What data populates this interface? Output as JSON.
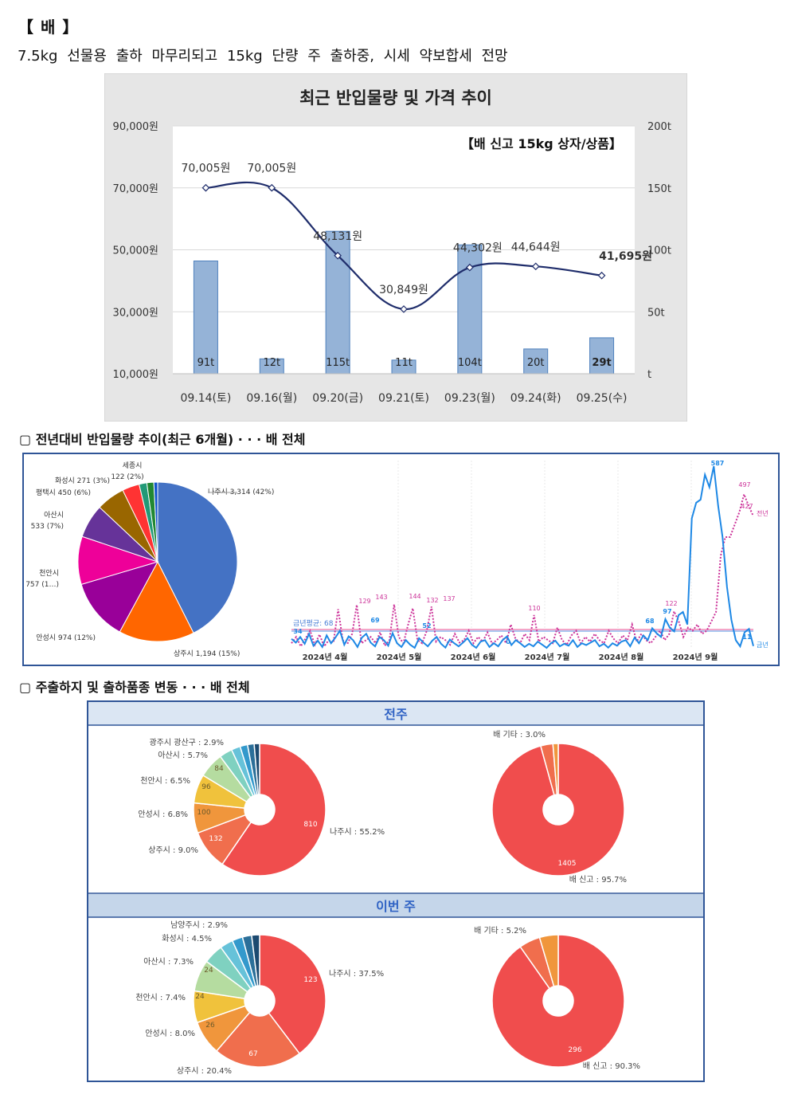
{
  "heading": "【 배 】",
  "summary": "7.5kg 선물용 출하 마무리되고 15kg 단량 주 출하중, 시세 약보합세 전망",
  "chart_data": [
    {
      "type": "bar+line",
      "title": "최근 반입물량 및 가격 추이",
      "subtitle": "【배 신고 15kg 상자/상품】",
      "categories": [
        "09.14(토)",
        "09.16(월)",
        "09.20(금)",
        "09.21(토)",
        "09.23(월)",
        "09.24(화)",
        "09.25(수)"
      ],
      "bar_series": {
        "values": [
          91,
          12,
          115,
          11,
          104,
          20,
          29
        ],
        "labels": [
          "91t",
          "12t",
          "115t",
          "11t",
          "104t",
          "20t",
          "29t"
        ]
      },
      "line_series": {
        "values": [
          70005,
          70005,
          48131,
          30849,
          44302,
          44644,
          41695
        ],
        "labels": [
          "70,005원",
          "70,005원",
          "48,131원",
          "30,849원",
          "44,302원",
          "44,644원",
          "41,695원"
        ]
      },
      "y_left": {
        "ticks": [
          "90,000원",
          "70,000원",
          "50,000원",
          "30,000원",
          "10,000원"
        ],
        "range": [
          10000,
          90000
        ]
      },
      "y_right": {
        "ticks": [
          "200t",
          "150t",
          "100t",
          "50t",
          "t"
        ],
        "range": [
          0,
          200
        ]
      },
      "grid": true,
      "colors": {
        "bar": "#95b3d7",
        "bar_border": "#4f81bd",
        "line": "#1f2d6b",
        "bg": "#e6e6e6"
      }
    },
    {
      "type": "pie",
      "section_title": "▢ 전년대비 반입물량 추이(최근 6개월) · · · 배 전체",
      "slices": [
        {
          "label": "나주시 3,314 (42%)",
          "value": 3314,
          "color": "#4472c4"
        },
        {
          "label": "상주시 1,194 (15%)",
          "value": 1194,
          "color": "#ff6600"
        },
        {
          "label": "안성시 974 (12%)",
          "value": 974,
          "color": "#990099"
        },
        {
          "label": "천안시 757 (1…)",
          "value": 757,
          "color": "#ee0099"
        },
        {
          "label": "아산시 533 (7%)",
          "value": 533,
          "color": "#663399"
        },
        {
          "label": "평택시 450 (6%)",
          "value": 450,
          "color": "#996600"
        },
        {
          "label": "화성시 271 (3%)",
          "value": 271,
          "color": "#ff3333"
        },
        {
          "label": "세종시 122 (2%)",
          "value": 122,
          "color": "#229977"
        },
        {
          "label": "",
          "value": 110,
          "color": "#228833"
        },
        {
          "label": "",
          "value": 60,
          "color": "#1155cc"
        }
      ]
    },
    {
      "type": "line",
      "x_ticks": [
        "2024년 4월",
        "2024년 5월",
        "2024년 6월",
        "2024년 7월",
        "2024년 8월",
        "2024년 9월"
      ],
      "series": [
        {
          "name": "금년",
          "color": "#1e88e5",
          "values": [
            34,
            22,
            40,
            18,
            50,
            12,
            28,
            8,
            45,
            20,
            38,
            60,
            15,
            42,
            30,
            8,
            38,
            50,
            22,
            10,
            40,
            30,
            12,
            52,
            20,
            8,
            30,
            15,
            5,
            36,
            22,
            10,
            28,
            40,
            18,
            6,
            32,
            20,
            10,
            22,
            36,
            15,
            5,
            25,
            30,
            8,
            20,
            10,
            30,
            42,
            14,
            30,
            20,
            8,
            18,
            10,
            25,
            15,
            5,
            20,
            28,
            10,
            18,
            12,
            30,
            8,
            20,
            14,
            22,
            30,
            10,
            18,
            6,
            20,
            12,
            25,
            30,
            10,
            38,
            20,
            45,
            30,
            68,
            52,
            40,
            97,
            70,
            58,
            110,
            120,
            80,
            420,
            470,
            480,
            560,
            520,
            587,
            460,
            360,
            200,
            95,
            30,
            10,
            55,
            66,
            11
          ]
        },
        {
          "name": "전년",
          "color": "#cc3399",
          "values": [
            20,
            40,
            10,
            35,
            60,
            15,
            48,
            10,
            30,
            22,
            129,
            30,
            18,
            50,
            143,
            20,
            30,
            40,
            20,
            55,
            12,
            30,
            144,
            40,
            20,
            80,
            132,
            30,
            20,
            60,
            137,
            25,
            40,
            30,
            15,
            50,
            22,
            30,
            60,
            20,
            40,
            25,
            55,
            18,
            30,
            45,
            20,
            80,
            35,
            20,
            50,
            30,
            110,
            25,
            40,
            30,
            20,
            70,
            30,
            15,
            45,
            60,
            20,
            40,
            25,
            50,
            30,
            20,
            60,
            35,
            20,
            45,
            30,
            80,
            25,
            50,
            30,
            20,
            40,
            60,
            30,
            50,
            122,
            90,
            40,
            70,
            60,
            80,
            50,
            60,
            90,
            120,
            300,
            360,
            360,
            400,
            440,
            497,
            460,
            427
          ]
        }
      ],
      "point_labels_curr": [
        "34",
        "69",
        "52",
        "0",
        "68",
        "97",
        "587",
        "11"
      ],
      "point_labels_prev": [
        "129",
        "143",
        "144",
        "132",
        "137",
        "110",
        "122",
        "497",
        "427"
      ],
      "average_label": "금년평균: 68",
      "legend_prev": "전년",
      "legend_curr": "금년"
    },
    {
      "type": "pie",
      "section_title": "▢ 주출하지 및 출하품종 변동 · · · 배 전체",
      "panel_label": "전주",
      "chart": "region",
      "slices": [
        {
          "value": 810,
          "pct_label": "나주시 : 55.2%",
          "color": "#f04d4d"
        },
        {
          "value": 132,
          "pct_label": "상주시 : 9.0%",
          "color": "#f06e4d"
        },
        {
          "value": 100,
          "pct_label": "안성시 : 6.8%",
          "color": "#f0963c"
        },
        {
          "value": 96,
          "pct_label": "천안시 : 6.5%",
          "color": "#f0c23c"
        },
        {
          "value": 84,
          "pct_label": "아산시 : 5.7%",
          "color": "#b5dca0"
        },
        {
          "value": 43,
          "pct_label": "광주시 광산구 : 2.9%",
          "color": "#7fd1c0"
        },
        {
          "value": 30,
          "pct_label": "",
          "color": "#66c2d9"
        },
        {
          "value": 25,
          "pct_label": "",
          "color": "#3399cc"
        },
        {
          "value": 22,
          "pct_label": "",
          "color": "#2b6f99"
        },
        {
          "value": 18,
          "pct_label": "",
          "color": "#1c4a70"
        }
      ]
    },
    {
      "type": "pie",
      "panel_label": "전주",
      "chart": "variety",
      "slices": [
        {
          "value": 1405,
          "pct_label": "배 신고 : 95.7%",
          "color": "#f04d4d"
        },
        {
          "value": 44,
          "pct_label": "배 기타 : 3.0%",
          "color": "#f06e4d"
        },
        {
          "value": 19,
          "pct_label": "",
          "color": "#f0963c"
        }
      ]
    },
    {
      "type": "pie",
      "panel_label": "이번 주",
      "chart": "region",
      "slices": [
        {
          "value": 123,
          "pct_label": "나주시 : 37.5%",
          "color": "#f04d4d"
        },
        {
          "value": 67,
          "pct_label": "상주시 : 20.4%",
          "color": "#f06e4d"
        },
        {
          "value": 26,
          "pct_label": "안성시 : 8.0%",
          "color": "#f0963c"
        },
        {
          "value": 24,
          "pct_label": "천안시 : 7.4%",
          "color": "#f0c23c"
        },
        {
          "value": 24,
          "pct_label": "아산시 : 7.3%",
          "color": "#b5dca0"
        },
        {
          "value": 15,
          "pct_label": "화성시 : 4.5%",
          "color": "#7fd1c0"
        },
        {
          "value": 10,
          "pct_label": "남양주시 : 2.9%",
          "color": "#66c2d9"
        },
        {
          "value": 8,
          "pct_label": "",
          "color": "#3399cc"
        },
        {
          "value": 7,
          "pct_label": "",
          "color": "#2b6f99"
        },
        {
          "value": 6,
          "pct_label": "",
          "color": "#1c4a70"
        }
      ]
    },
    {
      "type": "pie",
      "panel_label": "이번 주",
      "chart": "variety",
      "slices": [
        {
          "value": 296,
          "pct_label": "배 신고 : 90.3%",
          "color": "#f04d4d"
        },
        {
          "value": 17,
          "pct_label": "배 기타 : 5.2%",
          "color": "#f06e4d"
        },
        {
          "value": 15,
          "pct_label": "",
          "color": "#f0963c"
        }
      ]
    }
  ]
}
